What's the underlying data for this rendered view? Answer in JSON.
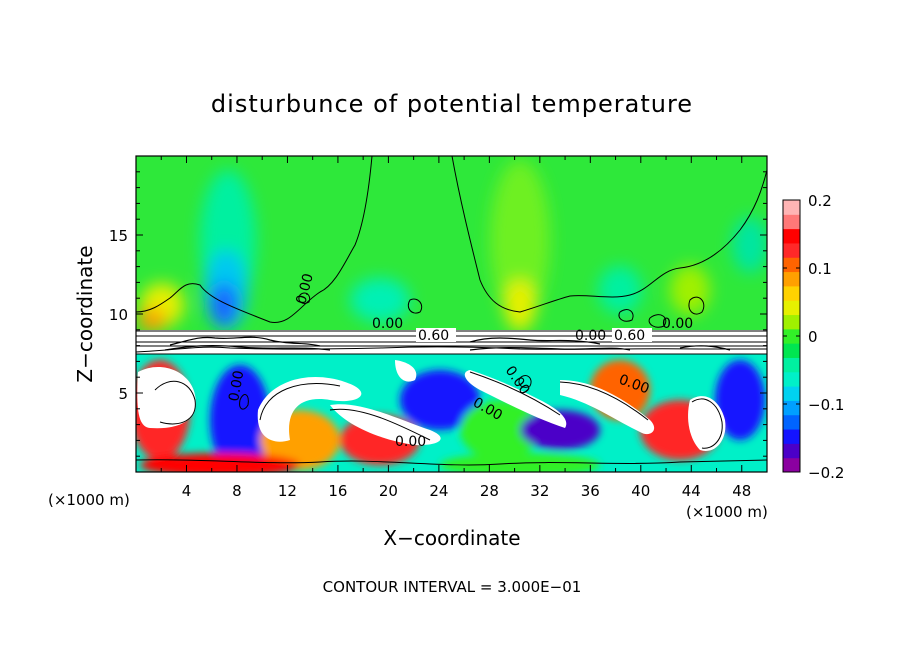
{
  "chart_data": {
    "type": "heatmap",
    "title": "disturbunce of potential temperature",
    "xlabel": "X−coordinate",
    "ylabel": "Z−coordinate",
    "x_unit_label": "(×1000 m)",
    "x_unit_label_right": "(×1000 m)",
    "footer": "CONTOUR INTERVAL = 3.000E−01",
    "xlim": [
      0,
      50
    ],
    "ylim": [
      0,
      20
    ],
    "x_ticks": [
      4,
      8,
      12,
      16,
      20,
      24,
      28,
      32,
      36,
      40,
      44,
      48
    ],
    "x_tick_labels": [
      "4",
      "8",
      "12",
      "16",
      "20",
      "24",
      "28",
      "32",
      "36",
      "40",
      "44",
      "48"
    ],
    "y_ticks": [
      5,
      10,
      15
    ],
    "y_tick_labels": [
      "5",
      "10",
      "15"
    ],
    "colorbar": {
      "range": [
        -0.2,
        0.2
      ],
      "ticks": [
        0.2,
        0.1,
        0,
        -0.1,
        -0.2
      ],
      "tick_labels": [
        "0.2",
        "0.1",
        "0",
        "−0.1",
        "−0.2"
      ],
      "colors": [
        "#8b00a0",
        "#4b00c8",
        "#1414ff",
        "#0064ff",
        "#00a0ff",
        "#00d2f0",
        "#00f0c8",
        "#00f0a0",
        "#00e650",
        "#32f028",
        "#a0f000",
        "#e6f000",
        "#ffd200",
        "#ffa000",
        "#ff6400",
        "#ff2828",
        "#ff0000",
        "#ff7878",
        "#ffb4b4"
      ]
    },
    "contour_labels": [
      "0.00",
      "0.00",
      "0.00",
      "0.00",
      "0.00",
      "0.00",
      "0.60",
      "0.60",
      "0.00",
      "0.00",
      "0.00"
    ]
  }
}
